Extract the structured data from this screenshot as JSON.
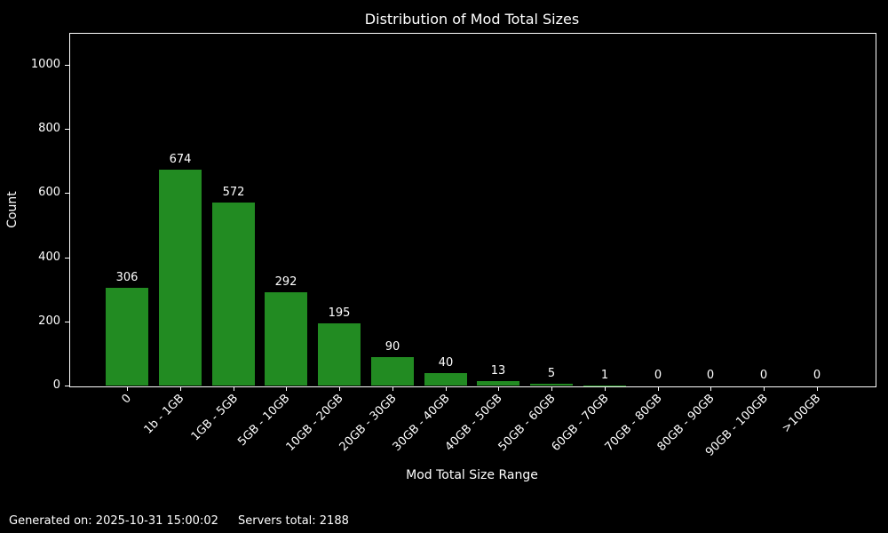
{
  "chart_data": {
    "type": "bar",
    "title": "Distribution of Mod Total Sizes",
    "xlabel": "Mod Total Size Range",
    "ylabel": "Count",
    "categories": [
      "0",
      "1b - 1GB",
      "1GB - 5GB",
      "5GB - 10GB",
      "10GB - 20GB",
      "20GB - 30GB",
      "30GB - 40GB",
      "40GB - 50GB",
      "50GB - 60GB",
      "60GB - 70GB",
      "70GB - 80GB",
      "80GB - 90GB",
      "90GB - 100GB",
      ">100GB"
    ],
    "values": [
      306,
      674,
      572,
      292,
      195,
      90,
      40,
      13,
      5,
      1,
      0,
      0,
      0,
      0
    ],
    "yticks": [
      0,
      200,
      400,
      600,
      800,
      1000
    ],
    "ylim": [
      0,
      1100
    ],
    "grid": false,
    "legend": false,
    "bar_value_labels": true,
    "xtick_rotation_deg": 45,
    "bar_color": "#228B22",
    "background_color": "#000000",
    "text_color": "#ffffff"
  },
  "footer": {
    "generated_label": "Generated on: 2025-10-31 15:00:02",
    "servers_label": "Servers total: 2188"
  }
}
